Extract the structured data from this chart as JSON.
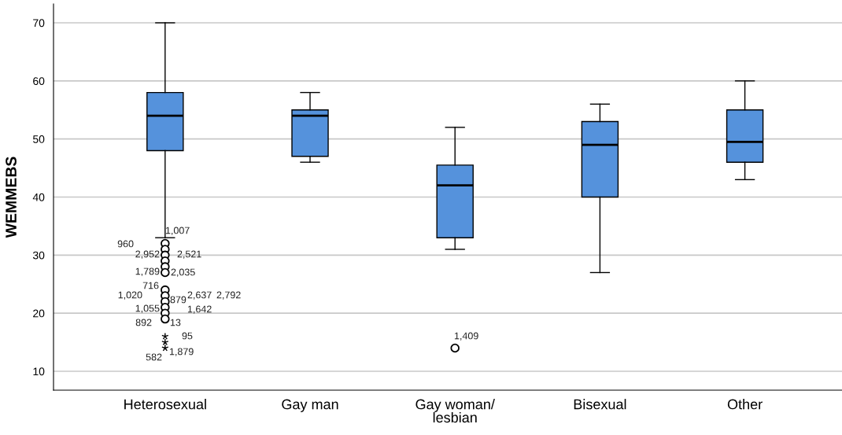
{
  "chart_data": {
    "type": "box",
    "ylabel": "WEMMEBS",
    "categories": [
      "Heterosexual",
      "Gay man",
      "Gay woman/\nlesbian",
      "Bisexual",
      "Other"
    ],
    "boxes": [
      {
        "low": 33,
        "q1": 48,
        "median": 54,
        "q3": 58,
        "high": 70,
        "outliers": [
          32,
          31,
          30,
          29,
          28,
          27,
          24,
          23,
          22,
          21,
          20,
          19,
          16,
          15,
          14
        ]
      },
      {
        "low": 46,
        "q1": 47,
        "median": 54,
        "q3": 55,
        "high": 58
      },
      {
        "low": 31,
        "q1": 33,
        "median": 42,
        "q3": 45.5,
        "high": 52,
        "outliers": [
          14
        ]
      },
      {
        "low": 27,
        "q1": 40,
        "median": 49,
        "q3": 53,
        "high": 56
      },
      {
        "low": 43,
        "q1": 46,
        "median": 49.5,
        "q3": 55,
        "high": 60
      }
    ],
    "color": "#5592dc",
    "ylim": [
      6.75,
      73.25
    ],
    "yticks": [
      10,
      20,
      30,
      40,
      50,
      60,
      70
    ],
    "grid": "y",
    "annotations": [
      "1,007",
      "960",
      "2,952",
      "2,521",
      "1,789",
      "2,035",
      "716",
      "1,020",
      "879",
      "2,637",
      "2,792",
      "1,055",
      "1,642",
      "892",
      "13",
      "95",
      "1,879",
      "582",
      "1,409"
    ]
  }
}
